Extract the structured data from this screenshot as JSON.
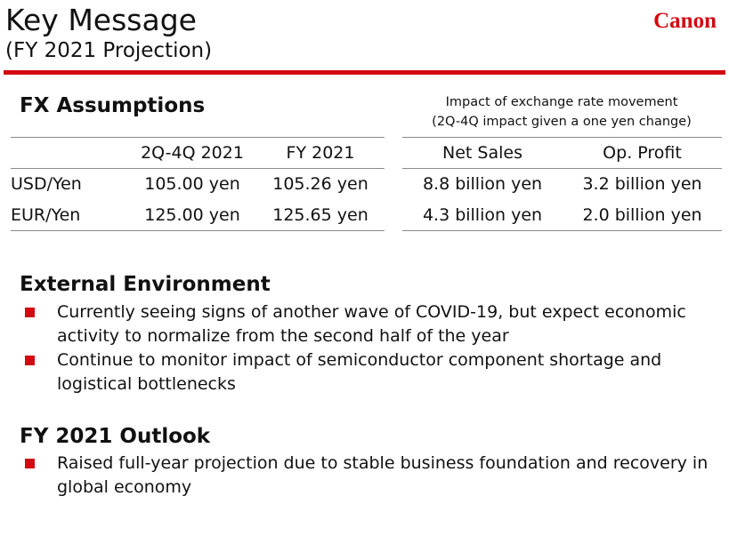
{
  "header": {
    "title": "Key Message",
    "subtitle": "(FY 2021 Projection)",
    "logo_text": "Canon",
    "accent_color": "#d20a11"
  },
  "fx": {
    "heading": "FX Assumptions",
    "columns": [
      "",
      "2Q-4Q 2021",
      "FY 2021"
    ],
    "rows": [
      [
        "USD/Yen",
        "105.00 yen",
        "105.26 yen"
      ],
      [
        "EUR/Yen",
        "125.00 yen",
        "125.65 yen"
      ]
    ]
  },
  "impact": {
    "heading_line1": "Impact of exchange rate movement",
    "heading_line2": "(2Q-4Q impact given a one yen change)",
    "columns": [
      "Net Sales",
      "Op. Profit"
    ],
    "rows": [
      [
        "8.8 billion yen",
        "3.2 billion yen"
      ],
      [
        "4.3 billion yen",
        "2.0 billion yen"
      ]
    ]
  },
  "external": {
    "heading": "External Environment",
    "bullets": [
      "Currently seeing signs of another wave of COVID-19, but expect economic activity to normalize from the second half of the year",
      "Continue to monitor impact of semiconductor component shortage and logistical bottlenecks"
    ]
  },
  "outlook": {
    "heading": "FY 2021 Outlook",
    "bullets": [
      "Raised full-year projection due to stable business foundation and recovery in global economy"
    ]
  }
}
